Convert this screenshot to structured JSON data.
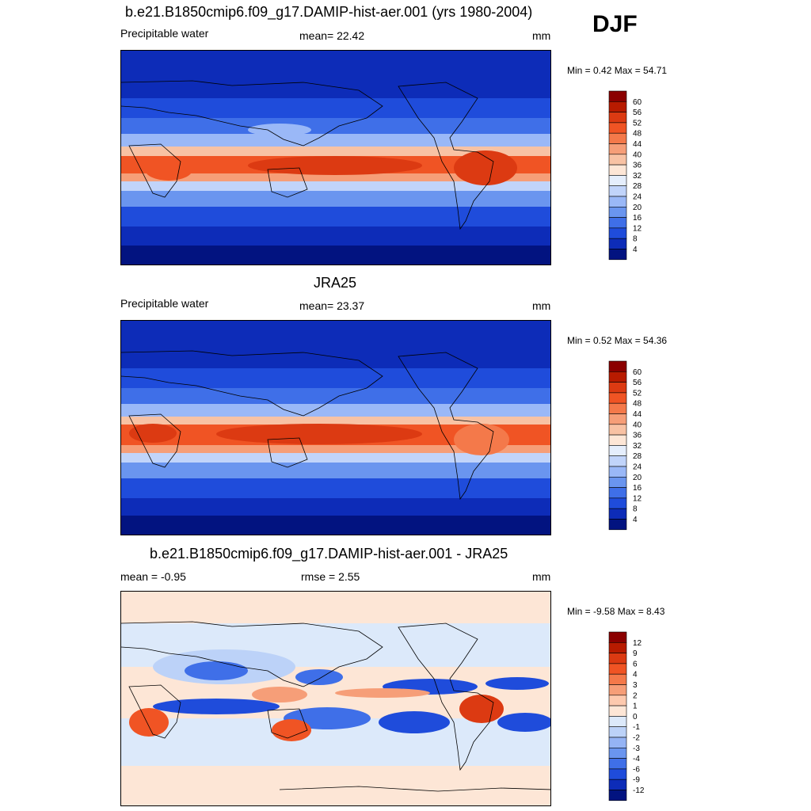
{
  "season": "DJF",
  "panels": [
    {
      "title": "b.e21.B1850cmip6.f09_g17.DAMIP-hist-aer.001 (yrs 1980-2004)",
      "left_label": "Precipitable water",
      "center_label": "mean=  22.42",
      "units": "mm",
      "minmax": "Min =   0.42 Max =  54.71",
      "colorbar": {
        "labels": [
          "60",
          "56",
          "52",
          "48",
          "44",
          "40",
          "36",
          "32",
          "28",
          "24",
          "20",
          "16",
          "12",
          "8",
          "4"
        ],
        "colors": [
          "#8b0000",
          "#b81b00",
          "#dc3a12",
          "#f05424",
          "#f4794a",
          "#f69e78",
          "#f8c2a4",
          "#fde6d6",
          "#e5eefc",
          "#c1d4fa",
          "#9ab8f7",
          "#6a95ef",
          "#3f6fe8",
          "#1f4cdb",
          "#0d2cb8",
          "#021380"
        ]
      }
    },
    {
      "title": "JRA25",
      "left_label": "Precipitable water",
      "center_label": "mean=  23.37",
      "units": "mm",
      "minmax": "Min =   0.52 Max =  54.36",
      "colorbar": {
        "labels": [
          "60",
          "56",
          "52",
          "48",
          "44",
          "40",
          "36",
          "32",
          "28",
          "24",
          "20",
          "16",
          "12",
          "8",
          "4"
        ],
        "colors": [
          "#8b0000",
          "#b81b00",
          "#dc3a12",
          "#f05424",
          "#f4794a",
          "#f69e78",
          "#f8c2a4",
          "#fde6d6",
          "#e5eefc",
          "#c1d4fa",
          "#9ab8f7",
          "#6a95ef",
          "#3f6fe8",
          "#1f4cdb",
          "#0d2cb8",
          "#021380"
        ]
      }
    },
    {
      "title": "b.e21.B1850cmip6.f09_g17.DAMIP-hist-aer.001 - JRA25",
      "left_label": "mean =  -0.95",
      "center_label": "rmse =   2.55",
      "units": "mm",
      "minmax": "Min =  -9.58 Max =   8.43",
      "colorbar": {
        "labels": [
          "12",
          "9",
          "6",
          "4",
          "3",
          "2",
          "1",
          "0",
          "-1",
          "-2",
          "-3",
          "-4",
          "-6",
          "-9",
          "-12"
        ],
        "colors": [
          "#8b0000",
          "#b81b00",
          "#dc3a12",
          "#f05424",
          "#f4794a",
          "#f69e78",
          "#fdc9ae",
          "#fde6d6",
          "#dce9fa",
          "#bcd2f8",
          "#95b4f5",
          "#6a95ef",
          "#3f6fe8",
          "#1f4cdb",
          "#0d2cb8",
          "#021380"
        ]
      }
    }
  ]
}
